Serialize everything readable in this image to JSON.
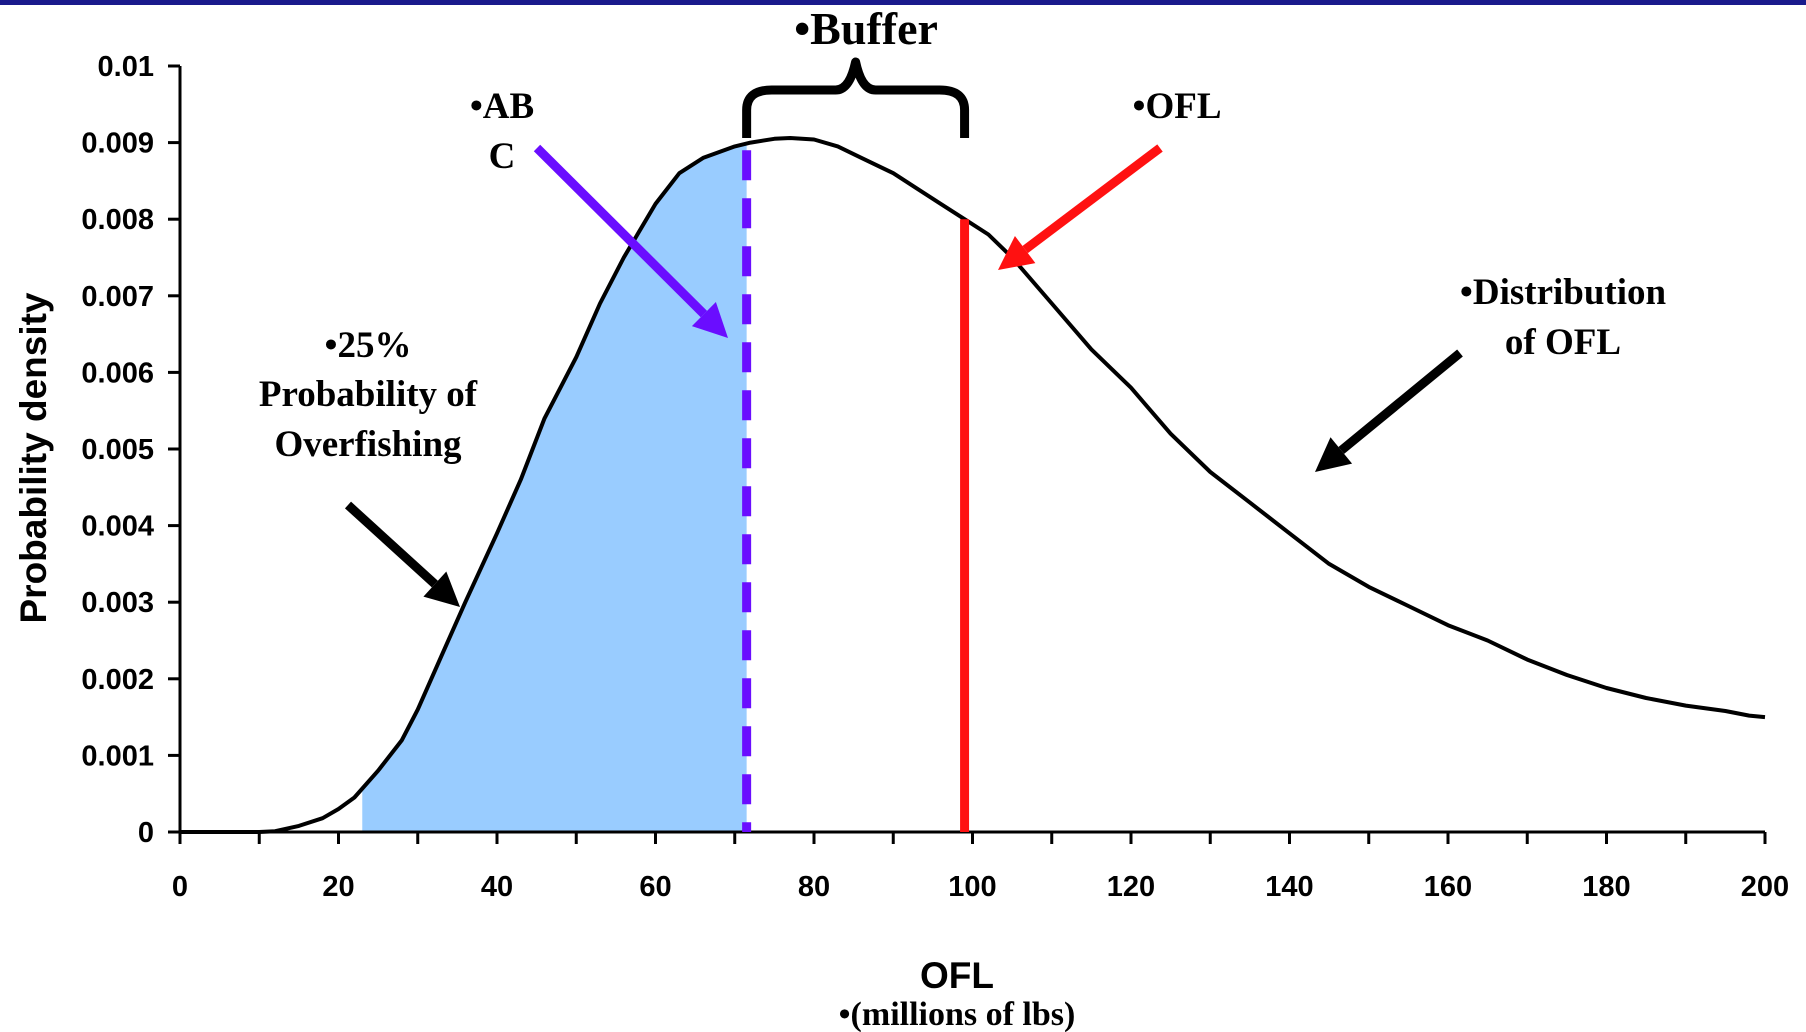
{
  "chart_data": {
    "type": "area",
    "title": "",
    "xlabel": "OFL",
    "xlabel_sub": "•(millions of lbs)",
    "ylabel": "Probability density",
    "xlim": [
      0,
      200
    ],
    "ylim": [
      0,
      0.01
    ],
    "x_ticks": [
      "0",
      "20",
      "40",
      "60",
      "80",
      "100",
      "120",
      "140",
      "160",
      "180",
      "200"
    ],
    "y_ticks": [
      "0",
      "0.001",
      "0.002",
      "0.003",
      "0.004",
      "0.005",
      "0.006",
      "0.007",
      "0.008",
      "0.009",
      "0.01"
    ],
    "series": [
      {
        "x": [
          0,
          10,
          12,
          15,
          18,
          20,
          22,
          25,
          28,
          30,
          33,
          36,
          40,
          43,
          46,
          50,
          53,
          56,
          60,
          63,
          66,
          70,
          72,
          75,
          77,
          80,
          83,
          86,
          90,
          93,
          96,
          99,
          102,
          105,
          110,
          115,
          120,
          125,
          130,
          135,
          140,
          145,
          150,
          155,
          160,
          165,
          170,
          175,
          180,
          185,
          190,
          195,
          198,
          200
        ],
        "y": [
          0,
          0,
          1e-05,
          8e-05,
          0.00018,
          0.0003,
          0.00045,
          0.0008,
          0.0012,
          0.0016,
          0.0023,
          0.003,
          0.0039,
          0.0046,
          0.0054,
          0.0062,
          0.0069,
          0.0075,
          0.0082,
          0.0086,
          0.0088,
          0.00895,
          0.009,
          0.00905,
          0.00906,
          0.00904,
          0.00895,
          0.0088,
          0.0086,
          0.0084,
          0.0082,
          0.008,
          0.0078,
          0.0075,
          0.0069,
          0.0063,
          0.0058,
          0.0052,
          0.0047,
          0.0043,
          0.0039,
          0.0035,
          0.0032,
          0.00295,
          0.0027,
          0.0025,
          0.00225,
          0.00205,
          0.00188,
          0.00175,
          0.00165,
          0.00158,
          0.00152,
          0.0015
        ]
      }
    ],
    "shaded_region": {
      "from": 23,
      "to": 71.5,
      "label": "25% Probability of Overfishing",
      "color": "#99ccff"
    },
    "abc_line": {
      "x": 71.5,
      "color": "#6a0dff"
    },
    "ofl_line": {
      "x": 99,
      "y_top": 0.008,
      "color": "#ff1111"
    },
    "buffer": {
      "from": 71.5,
      "to": 99
    },
    "annotations": {
      "buffer": "•Buffer",
      "abc_line1": "•AB",
      "abc_line2": "C",
      "ofl": "•OFL",
      "prob_line1": "•25%",
      "prob_line2": "Probability of",
      "prob_line3": "Overfishing",
      "dist_line1": "•Distribution",
      "dist_line2": "of OFL"
    }
  }
}
